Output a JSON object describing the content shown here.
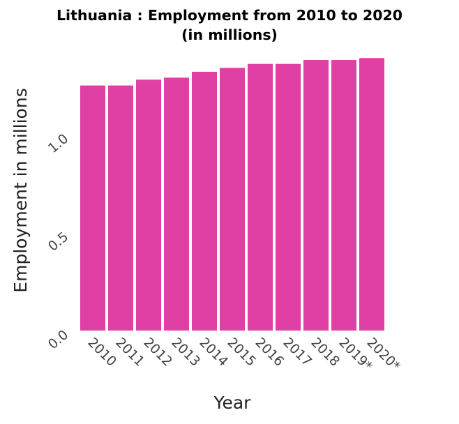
{
  "chart_data": {
    "type": "bar",
    "title": "Lithuania : Employment from 2010 to 2020",
    "subtitle": "(in millions)",
    "xlabel": "Year",
    "ylabel": "Employment in millions",
    "categories": [
      "2010",
      "2011",
      "2012",
      "2013",
      "2014",
      "2015",
      "2016",
      "2017",
      "2018",
      "2019*",
      "2020*"
    ],
    "values": [
      1.25,
      1.25,
      1.28,
      1.29,
      1.32,
      1.34,
      1.36,
      1.36,
      1.38,
      1.38,
      1.39
    ],
    "ylim": [
      0,
      1.43
    ],
    "yticks": [
      0.0,
      0.5,
      1.0
    ],
    "ytick_labels": [
      "0.0",
      "0.5",
      "1.0"
    ],
    "grid": false,
    "legend": "none",
    "bar_color": "#e040a4"
  }
}
